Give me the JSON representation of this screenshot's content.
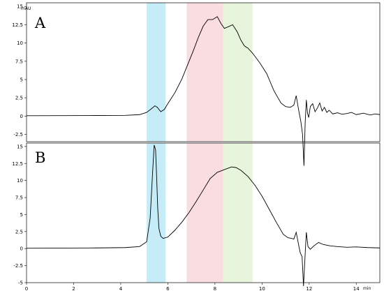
{
  "chart_data": [
    {
      "panel": "A",
      "type": "line",
      "title": "A",
      "xlabel": "min",
      "ylabel": "mAU",
      "xlim": [
        0,
        15
      ],
      "ylim": [
        -3.5,
        15.5
      ],
      "yticks": [
        -2.5,
        0,
        2.5,
        5,
        7.5,
        10,
        12.5,
        15
      ],
      "ytick_labels": [
        "-2.5",
        "0",
        "2.5",
        "5",
        "7.5",
        "10",
        "12.5",
        "15"
      ],
      "shaded_regions": [
        {
          "x": [
            5.1,
            5.9
          ],
          "color": "#c6ecf8"
        },
        {
          "x": [
            6.8,
            8.35
          ],
          "color": "#fadde0"
        },
        {
          "x": [
            8.35,
            9.6
          ],
          "color": "#e7f5dc"
        }
      ],
      "series": [
        {
          "x": [
            0,
            3.0,
            4.2,
            4.8,
            5.1,
            5.3,
            5.45,
            5.55,
            5.7,
            5.85,
            6.0,
            6.3,
            6.6,
            6.9,
            7.1,
            7.3,
            7.5,
            7.7,
            7.9,
            8.1,
            8.25,
            8.4,
            8.55,
            8.75,
            8.95,
            9.1,
            9.25,
            9.4,
            9.6,
            9.9,
            10.2,
            10.5,
            10.8,
            11.0,
            11.2,
            11.35,
            11.45,
            11.55,
            11.65,
            11.72,
            11.78,
            11.83,
            11.88,
            11.93,
            11.98,
            12.05,
            12.15,
            12.25,
            12.35,
            12.45,
            12.55,
            12.65,
            12.75,
            12.85,
            13.0,
            13.2,
            13.4,
            13.6,
            13.8,
            14.0,
            14.3,
            14.6,
            14.8,
            15.0
          ],
          "y": [
            0.05,
            0.08,
            0.1,
            0.2,
            0.5,
            1.0,
            1.4,
            1.2,
            0.6,
            0.9,
            1.7,
            3.2,
            5.1,
            7.5,
            9.1,
            10.8,
            12.3,
            13.2,
            13.2,
            13.6,
            12.7,
            12.0,
            12.2,
            12.5,
            11.5,
            10.4,
            9.6,
            9.3,
            8.6,
            7.3,
            5.8,
            3.5,
            1.8,
            1.3,
            1.2,
            1.5,
            2.8,
            0.9,
            -0.8,
            -2.5,
            -6.8,
            -1.0,
            2.2,
            0.4,
            -0.2,
            1.3,
            1.7,
            0.6,
            1.1,
            1.8,
            0.7,
            1.2,
            0.5,
            0.8,
            0.3,
            0.45,
            0.25,
            0.35,
            0.5,
            0.2,
            0.4,
            0.15,
            0.3,
            0.2
          ]
        }
      ]
    },
    {
      "panel": "B",
      "type": "line",
      "title": "B",
      "xlabel": "min",
      "ylabel": "mAU",
      "xlim": [
        0,
        15
      ],
      "ylim": [
        -5,
        15.5
      ],
      "xticks": [
        0,
        2,
        4,
        6,
        8,
        10,
        12,
        14
      ],
      "xtick_labels": [
        "0",
        "2",
        "4",
        "6",
        "8",
        "10",
        "12",
        "14"
      ],
      "yticks": [
        -5,
        -2.5,
        0,
        2.5,
        5,
        7.5,
        10,
        12.5,
        15
      ],
      "ytick_labels": [
        "-5",
        "-2.5",
        "0",
        "2.5",
        "5",
        "7.5",
        "10",
        "12.5",
        "15"
      ],
      "shaded_regions": [
        {
          "x": [
            5.1,
            5.9
          ],
          "color": "#c6ecf8"
        },
        {
          "x": [
            6.8,
            8.35
          ],
          "color": "#fadde0"
        },
        {
          "x": [
            8.35,
            9.6
          ],
          "color": "#e7f5dc"
        }
      ],
      "series": [
        {
          "x": [
            0,
            3.0,
            4.2,
            4.8,
            5.1,
            5.25,
            5.35,
            5.42,
            5.48,
            5.52,
            5.57,
            5.62,
            5.7,
            5.8,
            6.0,
            6.3,
            6.6,
            6.9,
            7.2,
            7.5,
            7.8,
            8.1,
            8.4,
            8.7,
            8.9,
            9.1,
            9.4,
            9.7,
            10.0,
            10.3,
            10.6,
            10.9,
            11.1,
            11.25,
            11.35,
            11.45,
            11.55,
            11.62,
            11.7,
            11.76,
            11.82,
            11.88,
            11.95,
            12.05,
            12.2,
            12.4,
            12.6,
            12.9,
            13.2,
            13.6,
            14.0,
            14.5,
            15.0
          ],
          "y": [
            0.05,
            0.1,
            0.15,
            0.3,
            1.0,
            4.5,
            11.0,
            15.2,
            14.5,
            11.0,
            6.0,
            3.0,
            1.8,
            1.5,
            1.7,
            2.7,
            3.9,
            5.3,
            6.9,
            8.6,
            10.3,
            11.2,
            11.6,
            12.0,
            11.9,
            11.5,
            10.6,
            9.3,
            7.7,
            5.8,
            3.9,
            2.1,
            1.6,
            1.5,
            1.4,
            2.4,
            0.6,
            -0.6,
            -1.2,
            -5.5,
            -1.5,
            2.4,
            0.3,
            -0.1,
            0.4,
            0.9,
            0.6,
            0.4,
            0.3,
            0.2,
            0.25,
            0.15,
            0.1
          ]
        }
      ]
    }
  ]
}
